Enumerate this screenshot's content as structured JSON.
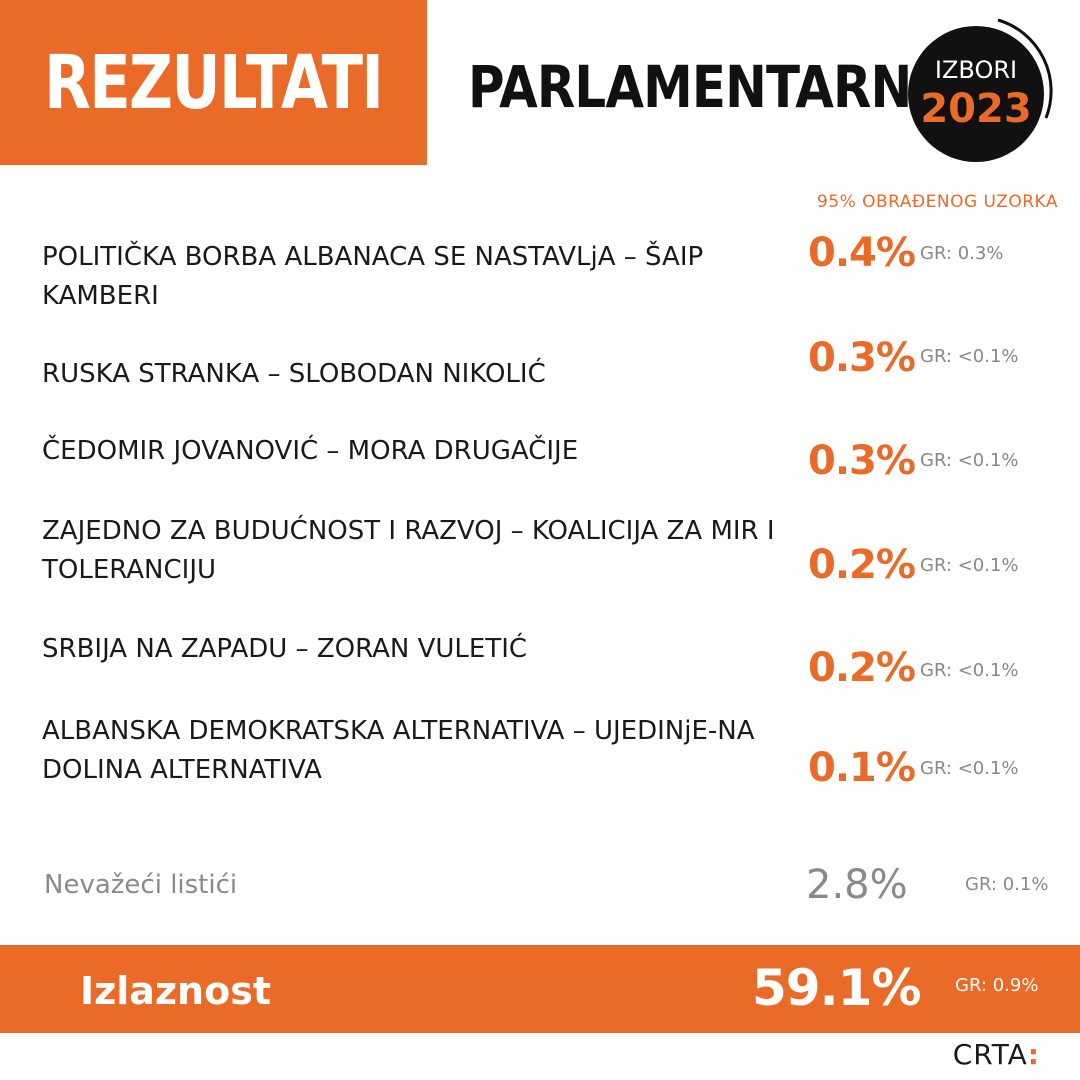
{
  "header": {
    "banner": "REZULTATI",
    "subtitle": "PARLAMENTARNI",
    "badge_line1": "IZBORI",
    "badge_line2": "2023"
  },
  "sample_note": "95% OBRAĐENOG UZORKA",
  "colors": {
    "accent": "#ea6a27",
    "text": "#1a1a1a",
    "muted": "#8a8a8a",
    "badge": "#111111"
  },
  "chart_data": {
    "type": "table",
    "columns": [
      "party",
      "percent",
      "margin"
    ],
    "rows": [
      {
        "party": "POLITIČKA BORBA ALBANACA SE NASTAVLjA – ŠAIP KAMBERI",
        "percent": "0.4%",
        "gr": "GR: 0.3%"
      },
      {
        "party": "RUSKA STRANKA – SLOBODAN NIKOLIĆ",
        "percent": "0.3%",
        "gr": "GR: <0.1%"
      },
      {
        "party": "ČEDOMIR JOVANOVIĆ – MORA DRUGAČIJE",
        "percent": "0.3%",
        "gr": "GR: <0.1%"
      },
      {
        "party": "ZAJEDNO ZA BUDUĆNOST I RAZVOJ – KOALICIJA ZA MIR I TOLERANCIJU",
        "percent": "0.2%",
        "gr": "GR: <0.1%"
      },
      {
        "party": "SRBIJA NA ZAPADU – ZORAN VULETIĆ",
        "percent": "0.2%",
        "gr": "GR: <0.1%"
      },
      {
        "party": "ALBANSKA DEMOKRATSKA ALTERNATIVA – UJEDINjE-NA DOLINA ALTERNATIVA",
        "percent": "0.1%",
        "gr": "GR: <0.1%"
      }
    ],
    "invalid": {
      "label": "Nevažeći listići",
      "percent": "2.8%",
      "gr": "GR: 0.1%"
    },
    "turnout": {
      "label": "Izlaznost",
      "percent": "59.1%",
      "gr": "GR: 0.9%"
    }
  },
  "logo": {
    "text": "CRTA",
    "colon": ":"
  }
}
